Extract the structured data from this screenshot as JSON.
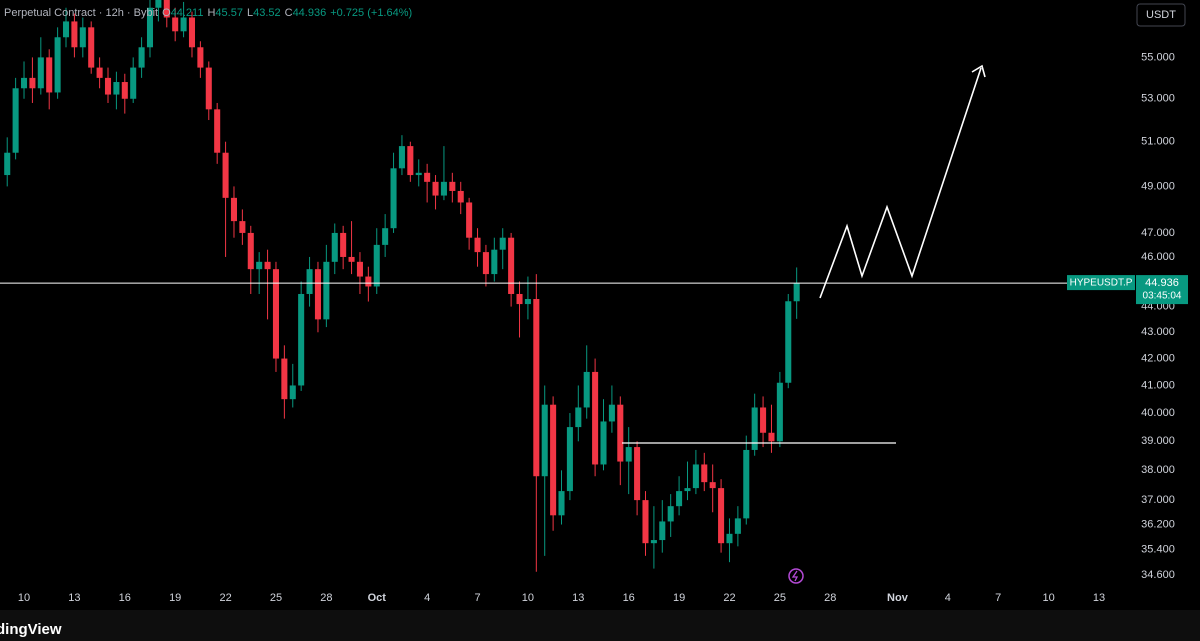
{
  "chart_data": {
    "type": "candlestick",
    "header": {
      "info": "Perpetual Contract · 12h · Bybit",
      "ohlc_labels": [
        "O",
        "H",
        "L",
        "C"
      ],
      "change": "+0.725 (+1.64%)"
    },
    "currency": "USDT",
    "symbol": "HYPEUSDT.P",
    "countdown": "03:45:04",
    "brand": "dingView",
    "up_color": "#089981",
    "down_color": "#f23645",
    "log_scale": true,
    "ylim": [
      34.2,
      57.9
    ],
    "yticks": [
      {
        "value": 34.6,
        "label": "34.600"
      },
      {
        "value": 35.4,
        "label": "35.400"
      },
      {
        "value": 36.2,
        "label": "36.200"
      },
      {
        "value": 37,
        "label": "37.000"
      },
      {
        "value": 38,
        "label": "38.000"
      },
      {
        "value": 39,
        "label": "39.000"
      },
      {
        "value": 40,
        "label": "40.000"
      },
      {
        "value": 41,
        "label": "41.000"
      },
      {
        "value": 42,
        "label": "42.000"
      },
      {
        "value": 43,
        "label": "43.000"
      },
      {
        "value": 44,
        "label": "44.000"
      },
      {
        "value": 46,
        "label": "46.000"
      },
      {
        "value": 47,
        "label": "47.000"
      },
      {
        "value": 49,
        "label": "49.000"
      },
      {
        "value": 51,
        "label": "51.000"
      },
      {
        "value": 53,
        "label": "53.000"
      },
      {
        "value": 55,
        "label": "55.000"
      }
    ],
    "xlim": [
      -0.86,
      132.5
    ],
    "xticks": [
      {
        "value": 2,
        "label": "10"
      },
      {
        "value": 8,
        "label": "13"
      },
      {
        "value": 14,
        "label": "16"
      },
      {
        "value": 20,
        "label": "19"
      },
      {
        "value": 26,
        "label": "22"
      },
      {
        "value": 32,
        "label": "25"
      },
      {
        "value": 38,
        "label": "28"
      },
      {
        "value": 44,
        "label": "Oct"
      },
      {
        "value": 50,
        "label": "4"
      },
      {
        "value": 56,
        "label": "7"
      },
      {
        "value": 62,
        "label": "10"
      },
      {
        "value": 68,
        "label": "13"
      },
      {
        "value": 74,
        "label": "16"
      },
      {
        "value": 80,
        "label": "19"
      },
      {
        "value": 86,
        "label": "22"
      },
      {
        "value": 92,
        "label": "25"
      },
      {
        "value": 98,
        "label": "28"
      },
      {
        "value": 106,
        "label": "Nov"
      },
      {
        "value": 112,
        "label": "4"
      },
      {
        "value": 118,
        "label": "7"
      },
      {
        "value": 124,
        "label": "10"
      },
      {
        "value": 130,
        "label": "13"
      }
    ],
    "open": [
      49.5,
      50.5,
      53.5,
      54,
      53.5,
      55,
      53.3,
      56,
      56.8,
      55.5,
      56.5,
      54.5,
      54,
      53.2,
      53.8,
      53,
      54.5,
      55.5,
      57.5,
      58,
      57,
      56.3,
      57,
      55.5,
      54.5,
      52.5,
      50.5,
      48.5,
      47.5,
      47,
      45.5,
      45.8,
      45.5,
      42,
      40.5,
      41,
      44.5,
      45.5,
      43.5,
      45.8,
      47,
      46,
      45.8,
      45.2,
      44.8,
      46.5,
      47.2,
      49.8,
      50.8,
      49.5,
      49.6,
      49.2,
      48.6,
      49.2,
      48.8,
      48.3,
      46.8,
      46.2,
      45.3,
      46.3,
      46.8,
      44.5,
      44.1,
      44.3,
      37.8,
      40.3,
      36.5,
      37.3,
      39.5,
      40.2,
      41.5,
      38.2,
      39.7,
      40.3,
      38.3,
      38.8,
      37,
      35.6,
      35.7,
      36.3,
      36.8,
      37.3,
      37.4,
      38.2,
      37.6,
      37.4,
      35.6,
      35.9,
      36.4,
      38.7,
      40.2,
      39.3,
      39.0,
      41.1,
      44.211
    ],
    "high": [
      51.2,
      54,
      54.8,
      55,
      56,
      55.4,
      56.5,
      57.5,
      57.2,
      57,
      56.8,
      55,
      54.5,
      54.3,
      54.2,
      55,
      56,
      58.5,
      59,
      58.5,
      57.5,
      57.8,
      57.3,
      55.8,
      54.8,
      52.8,
      51,
      49,
      48,
      47.3,
      46.2,
      46.3,
      45.8,
      42.5,
      41.8,
      45,
      46,
      45.8,
      46.5,
      47.4,
      47.3,
      47.5,
      46.2,
      45.6,
      47.2,
      47.8,
      50.5,
      51.3,
      51,
      50.2,
      50,
      49.5,
      50.8,
      49.6,
      49.2,
      48.5,
      47.2,
      46.5,
      46.8,
      47.2,
      47,
      45,
      45.2,
      45.3,
      41,
      40.6,
      38,
      40,
      41,
      42.5,
      42,
      40.5,
      41,
      40.6,
      39.5,
      39,
      37.3,
      36.8,
      37,
      37.2,
      37.8,
      38.3,
      38.7,
      38.6,
      38.2,
      37.7,
      36.4,
      36.8,
      39.2,
      40.7,
      40.6,
      40.3,
      41.5,
      44.5,
      45.57
    ],
    "low": [
      49.0,
      50.2,
      53,
      52.8,
      53.2,
      52.5,
      53,
      55.5,
      55,
      55,
      54.2,
      53.5,
      52.8,
      52.5,
      52.3,
      52.8,
      54,
      55,
      56.8,
      56.5,
      55.8,
      56,
      55,
      54,
      52,
      50,
      46,
      46.8,
      46.5,
      44.5,
      44.5,
      43.5,
      41.5,
      39.8,
      40.2,
      40.8,
      44,
      43,
      43.2,
      45.3,
      45.5,
      45.3,
      44.5,
      44.2,
      44.5,
      46,
      47,
      49.5,
      49.2,
      49,
      48.3,
      48,
      48.4,
      48.3,
      47.8,
      46.3,
      45.6,
      44.8,
      45,
      45.5,
      44,
      42.8,
      43.5,
      34.7,
      35.2,
      36,
      36.2,
      37,
      39,
      39.8,
      37.8,
      38,
      39.3,
      37.5,
      37.2,
      36.5,
      35.2,
      34.8,
      35.3,
      35.8,
      36.5,
      37,
      37.2,
      37.3,
      36.6,
      35.3,
      35,
      35.5,
      36.2,
      38.5,
      38.8,
      38.6,
      38.8,
      40.9,
      43.52
    ],
    "close": [
      50.5,
      53.5,
      54,
      53.5,
      55,
      53.3,
      56,
      56.8,
      55.5,
      56.5,
      54.5,
      54,
      53.2,
      53.8,
      53,
      54.5,
      55.5,
      57.5,
      58,
      57,
      56.3,
      57,
      55.5,
      54.5,
      52.5,
      50.5,
      48.5,
      47.5,
      47,
      45.5,
      45.8,
      45.5,
      42,
      40.5,
      41,
      44.5,
      45.5,
      43.5,
      45.8,
      47,
      46,
      45.8,
      45.2,
      44.8,
      46.5,
      47.2,
      49.8,
      50.8,
      49.5,
      49.6,
      49.2,
      48.6,
      49.2,
      48.8,
      48.3,
      46.8,
      46.2,
      45.3,
      46.3,
      46.8,
      44.5,
      44.1,
      44.3,
      37.8,
      40.3,
      36.5,
      37.3,
      39.5,
      40.2,
      41.5,
      38.2,
      39.7,
      40.3,
      38.3,
      38.8,
      37,
      35.6,
      35.7,
      36.3,
      36.8,
      37.3,
      37.4,
      38.2,
      37.6,
      37.4,
      35.6,
      35.9,
      36.4,
      38.7,
      40.2,
      39.3,
      39.0,
      41.1,
      44.211,
      44.936
    ]
  }
}
